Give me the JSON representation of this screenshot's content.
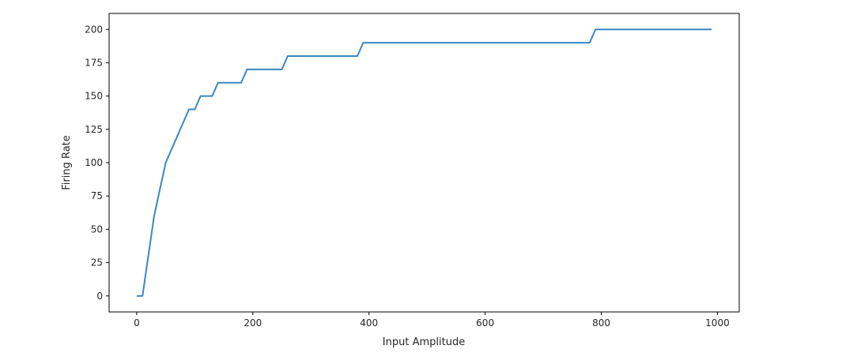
{
  "chart_data": {
    "type": "line",
    "title": "",
    "xlabel": "Input Amplitude",
    "ylabel": "Firing Rate",
    "xlim": [
      -47.5,
      1037.5
    ],
    "ylim": [
      -12,
      212
    ],
    "xticks": [
      0,
      200,
      400,
      600,
      800,
      1000
    ],
    "yticks": [
      0,
      25,
      50,
      75,
      100,
      125,
      150,
      175,
      200
    ],
    "grid": false,
    "legend": "none",
    "series": [
      {
        "color": "#3a86c0",
        "x": [
          0,
          10,
          20,
          30,
          40,
          50,
          60,
          70,
          80,
          90,
          100,
          110,
          120,
          130,
          140,
          150,
          160,
          170,
          180,
          190,
          200,
          210,
          220,
          230,
          240,
          250,
          260,
          270,
          280,
          290,
          300,
          310,
          320,
          330,
          340,
          350,
          360,
          370,
          380,
          390,
          400,
          500,
          600,
          700,
          780,
          790,
          800,
          900,
          990
        ],
        "y": [
          0,
          0,
          30,
          60,
          80,
          100,
          110,
          120,
          130,
          140,
          140,
          150,
          150,
          150,
          160,
          160,
          160,
          160,
          160,
          170,
          170,
          170,
          170,
          170,
          170,
          170,
          180,
          180,
          180,
          180,
          180,
          180,
          180,
          180,
          180,
          180,
          180,
          180,
          180,
          190,
          190,
          190,
          190,
          190,
          190,
          200,
          200,
          200,
          200
        ]
      }
    ]
  }
}
